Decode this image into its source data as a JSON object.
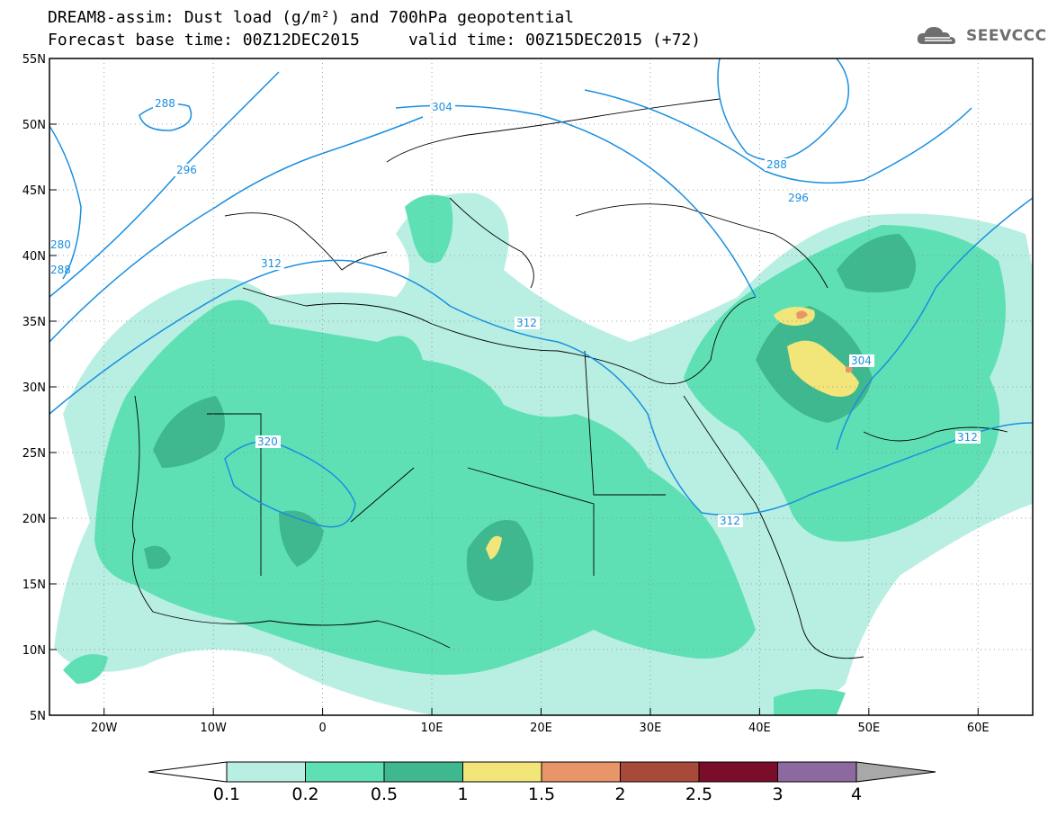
{
  "header": {
    "title_line1": "DREAM8-assim: Dust load (g/m²) and 700hPa geopotential",
    "title_line2": "Forecast base time: 00Z12DEC2015     valid time: 00Z15DEC2015 (+72)",
    "logo_text": "SEEVCCC"
  },
  "map": {
    "lon_ticks": [
      "20W",
      "10W",
      "0",
      "10E",
      "20E",
      "30E",
      "40E",
      "50E",
      "60E"
    ],
    "lat_ticks": [
      "55N",
      "50N",
      "45N",
      "40N",
      "35N",
      "30N",
      "25N",
      "20N",
      "15N",
      "10N",
      "5N"
    ],
    "lon_range": [
      -25,
      65
    ],
    "lat_range": [
      5,
      55
    ],
    "geopotential_labels": [
      "288",
      "304",
      "296",
      "288",
      "296",
      "280",
      "288",
      "312",
      "312",
      "304",
      "320",
      "312",
      "312"
    ]
  },
  "colorbar": {
    "labels": [
      "0.1",
      "0.2",
      "0.5",
      "1",
      "1.5",
      "2",
      "2.5",
      "3",
      "4"
    ],
    "colors": [
      "#b8efe2",
      "#5fe0b4",
      "#3fb88f",
      "#f2e67a",
      "#e8956a",
      "#a84a3a",
      "#7a0e2a",
      "#8c6aa0",
      "#a0a0a0"
    ],
    "under_color": "#ffffff",
    "over_color": "#a8a8a8"
  }
}
